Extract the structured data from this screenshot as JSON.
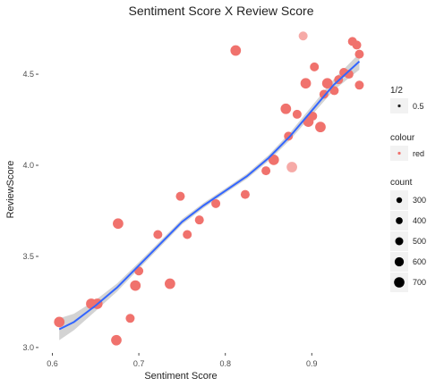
{
  "chart_data": {
    "type": "scatter",
    "title": "Sentiment Score X Review Score",
    "xlabel": "Sentiment Score",
    "ylabel": "ReviewScore",
    "xlim": [
      0.585,
      0.968
    ],
    "ylim": [
      2.975,
      4.77
    ],
    "x_ticks": [
      0.6,
      0.7,
      0.8,
      0.9
    ],
    "x_tick_labels": [
      "0.6",
      "0.7",
      "0.8",
      "0.9"
    ],
    "y_ticks": [
      3.0,
      3.5,
      4.0,
      4.5
    ],
    "y_tick_labels": [
      "3.0",
      "3.5",
      "4.0",
      "4.5"
    ],
    "grid": false,
    "point_color": "#f0726d",
    "trend_color": "#3366ff",
    "band_color": "#c8c8c8",
    "points": [
      {
        "x": 0.608,
        "y": 3.14,
        "count": 400,
        "alpha": 1.0
      },
      {
        "x": 0.645,
        "y": 3.24,
        "count": 400,
        "alpha": 1.0
      },
      {
        "x": 0.652,
        "y": 3.24,
        "count": 400,
        "alpha": 1.0
      },
      {
        "x": 0.674,
        "y": 3.04,
        "count": 400,
        "alpha": 1.0
      },
      {
        "x": 0.676,
        "y": 3.68,
        "count": 400,
        "alpha": 1.0
      },
      {
        "x": 0.69,
        "y": 3.16,
        "count": 300,
        "alpha": 1.0
      },
      {
        "x": 0.696,
        "y": 3.34,
        "count": 400,
        "alpha": 1.0
      },
      {
        "x": 0.7,
        "y": 3.42,
        "count": 300,
        "alpha": 1.0
      },
      {
        "x": 0.722,
        "y": 3.62,
        "count": 300,
        "alpha": 1.0
      },
      {
        "x": 0.736,
        "y": 3.35,
        "count": 400,
        "alpha": 1.0
      },
      {
        "x": 0.748,
        "y": 3.83,
        "count": 300,
        "alpha": 1.0
      },
      {
        "x": 0.756,
        "y": 3.62,
        "count": 300,
        "alpha": 1.0
      },
      {
        "x": 0.77,
        "y": 3.7,
        "count": 300,
        "alpha": 1.0
      },
      {
        "x": 0.789,
        "y": 3.79,
        "count": 300,
        "alpha": 1.0
      },
      {
        "x": 0.812,
        "y": 4.63,
        "count": 400,
        "alpha": 1.0
      },
      {
        "x": 0.823,
        "y": 3.84,
        "count": 300,
        "alpha": 1.0
      },
      {
        "x": 0.847,
        "y": 3.97,
        "count": 300,
        "alpha": 1.0
      },
      {
        "x": 0.856,
        "y": 4.03,
        "count": 400,
        "alpha": 1.0
      },
      {
        "x": 0.87,
        "y": 4.31,
        "count": 400,
        "alpha": 1.0
      },
      {
        "x": 0.873,
        "y": 4.16,
        "count": 300,
        "alpha": 1.0
      },
      {
        "x": 0.877,
        "y": 3.99,
        "count": 400,
        "alpha": 0.6
      },
      {
        "x": 0.883,
        "y": 4.28,
        "count": 300,
        "alpha": 1.0
      },
      {
        "x": 0.89,
        "y": 4.71,
        "count": 300,
        "alpha": 0.6
      },
      {
        "x": 0.893,
        "y": 4.45,
        "count": 400,
        "alpha": 1.0
      },
      {
        "x": 0.896,
        "y": 4.24,
        "count": 400,
        "alpha": 1.0
      },
      {
        "x": 0.901,
        "y": 4.27,
        "count": 300,
        "alpha": 1.0
      },
      {
        "x": 0.903,
        "y": 4.54,
        "count": 300,
        "alpha": 1.0
      },
      {
        "x": 0.91,
        "y": 4.21,
        "count": 400,
        "alpha": 1.0
      },
      {
        "x": 0.914,
        "y": 4.39,
        "count": 300,
        "alpha": 1.0
      },
      {
        "x": 0.918,
        "y": 4.45,
        "count": 400,
        "alpha": 1.0
      },
      {
        "x": 0.926,
        "y": 4.41,
        "count": 300,
        "alpha": 1.0
      },
      {
        "x": 0.931,
        "y": 4.47,
        "count": 300,
        "alpha": 1.0
      },
      {
        "x": 0.937,
        "y": 4.51,
        "count": 300,
        "alpha": 1.0
      },
      {
        "x": 0.943,
        "y": 4.5,
        "count": 300,
        "alpha": 1.0
      },
      {
        "x": 0.947,
        "y": 4.68,
        "count": 300,
        "alpha": 1.0
      },
      {
        "x": 0.952,
        "y": 4.66,
        "count": 300,
        "alpha": 1.0
      },
      {
        "x": 0.955,
        "y": 4.61,
        "count": 300,
        "alpha": 1.0
      },
      {
        "x": 0.955,
        "y": 4.44,
        "count": 300,
        "alpha": 1.0
      }
    ],
    "trend": {
      "x": [
        0.608,
        0.625,
        0.65,
        0.675,
        0.7,
        0.725,
        0.75,
        0.775,
        0.8,
        0.825,
        0.85,
        0.875,
        0.9,
        0.925,
        0.955
      ],
      "y": [
        3.1,
        3.14,
        3.23,
        3.33,
        3.45,
        3.57,
        3.69,
        3.78,
        3.86,
        3.94,
        4.04,
        4.16,
        4.3,
        4.44,
        4.57
      ],
      "band_half_width": [
        0.06,
        0.045,
        0.03,
        0.022,
        0.018,
        0.016,
        0.015,
        0.014,
        0.013,
        0.014,
        0.016,
        0.02,
        0.025,
        0.03,
        0.045
      ]
    },
    "legends": [
      {
        "title": "1/2",
        "entries": [
          {
            "label": "0.5",
            "symbol": "dot-small"
          }
        ]
      },
      {
        "title": "colour",
        "entries": [
          {
            "label": "red",
            "symbol": "dot-red"
          }
        ]
      },
      {
        "title": "count",
        "entries": [
          {
            "label": "300",
            "size": 300
          },
          {
            "label": "400",
            "size": 400
          },
          {
            "label": "500",
            "size": 500
          },
          {
            "label": "600",
            "size": 600
          },
          {
            "label": "700",
            "size": 700
          }
        ]
      }
    ],
    "legend_placement": "right"
  }
}
